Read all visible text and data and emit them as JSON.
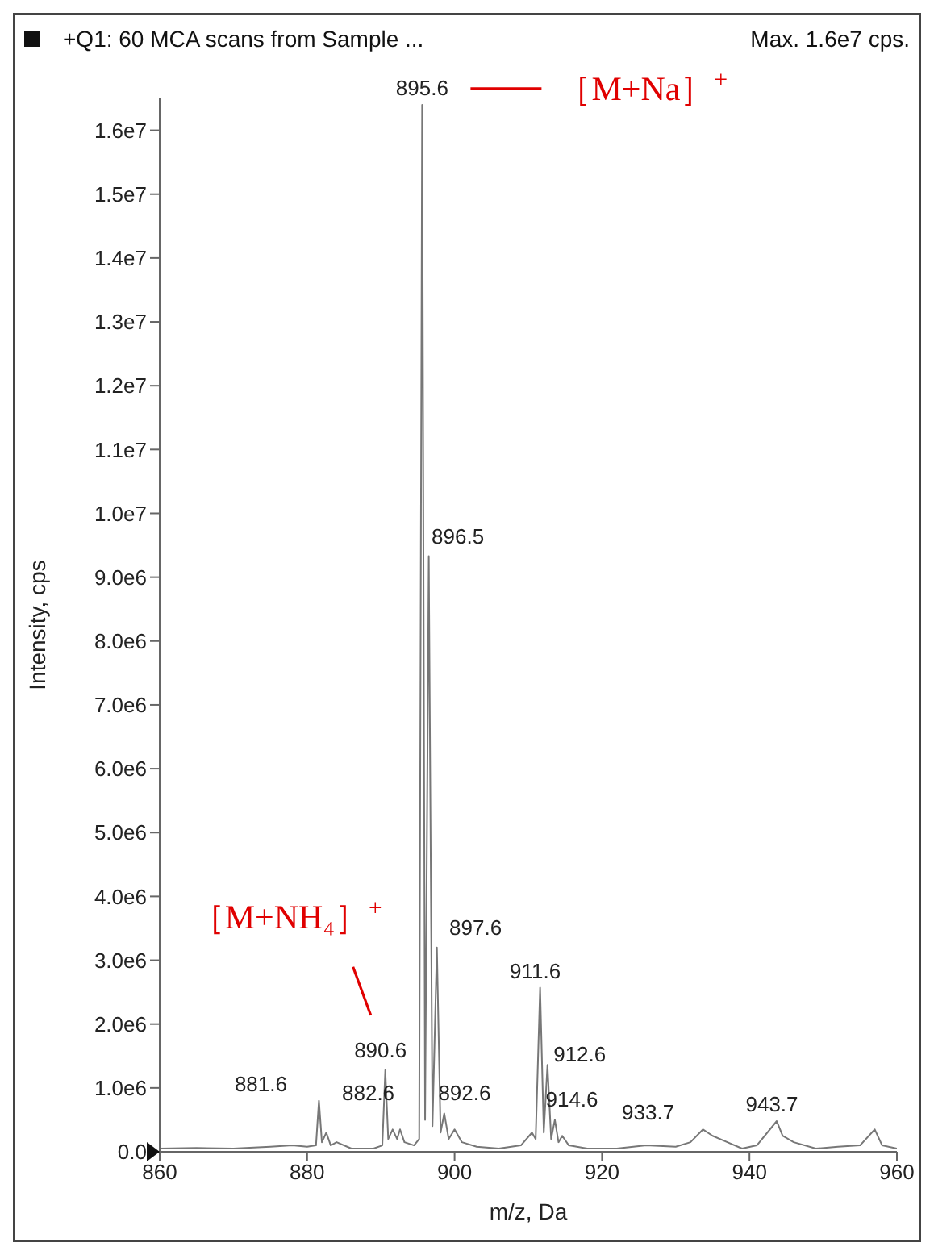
{
  "chart_data": {
    "type": "line",
    "title": "+Q1: 60 MCA scans from Sample ...",
    "subtitle": "Max. 1.6e7 cps.",
    "xlabel": "m/z, Da",
    "ylabel": "Intensity, cps",
    "x": [
      860,
      865,
      870,
      875,
      878,
      880,
      881.2,
      881.6,
      882.0,
      882.6,
      883.2,
      884,
      886,
      889,
      890.2,
      890.6,
      891.0,
      891.6,
      892.2,
      892.6,
      893.2,
      894.5,
      895.2,
      895.6,
      896.0,
      896.5,
      897.0,
      897.6,
      898.1,
      898.6,
      899.2,
      900,
      901,
      903,
      906,
      909,
      910.5,
      911.0,
      911.6,
      912.1,
      912.6,
      913.1,
      913.6,
      914.1,
      914.6,
      915.5,
      918,
      922,
      926,
      930,
      932,
      933.7,
      935,
      937,
      939,
      941,
      943.7,
      944.5,
      946,
      949,
      952,
      955,
      957,
      958,
      960
    ],
    "series": [
      {
        "color": "#777777",
        "values": [
          50000,
          60000,
          50000,
          80000,
          100000,
          80000,
          100000,
          800000,
          150000,
          300000,
          100000,
          150000,
          50000,
          50000,
          100000,
          1280000,
          200000,
          350000,
          200000,
          350000,
          150000,
          100000,
          200000,
          16400000,
          500000,
          9330000,
          400000,
          3200000,
          300000,
          600000,
          200000,
          350000,
          150000,
          80000,
          50000,
          100000,
          300000,
          200000,
          2570000,
          300000,
          1360000,
          200000,
          500000,
          150000,
          250000,
          100000,
          50000,
          50000,
          100000,
          80000,
          150000,
          350000,
          250000,
          150000,
          50000,
          100000,
          480000,
          250000,
          150000,
          50000,
          80000,
          100000,
          350000,
          100000,
          50000
        ]
      }
    ],
    "xlim": [
      860,
      960
    ],
    "xticks": [
      860,
      880,
      900,
      920,
      940,
      960
    ],
    "ylim": [
      0,
      16500000
    ],
    "yticks": [
      {
        "value": 0,
        "label": "0.0"
      },
      {
        "value": 1000000,
        "label": "1.0e6"
      },
      {
        "value": 2000000,
        "label": "2.0e6"
      },
      {
        "value": 3000000,
        "label": "3.0e6"
      },
      {
        "value": 4000000,
        "label": "4.0e6"
      },
      {
        "value": 5000000,
        "label": "5.0e6"
      },
      {
        "value": 6000000,
        "label": "6.0e6"
      },
      {
        "value": 7000000,
        "label": "7.0e6"
      },
      {
        "value": 8000000,
        "label": "8.0e6"
      },
      {
        "value": 9000000,
        "label": "9.0e6"
      },
      {
        "value": 10000000,
        "label": "1.0e7"
      },
      {
        "value": 11000000,
        "label": "1.1e7"
      },
      {
        "value": 12000000,
        "label": "1.2e7"
      },
      {
        "value": 13000000,
        "label": "1.3e7"
      },
      {
        "value": 14000000,
        "label": "1.4e7"
      },
      {
        "value": 15000000,
        "label": "1.5e7"
      },
      {
        "value": 16000000,
        "label": "1.6e7"
      }
    ],
    "grid": false,
    "marker": "none",
    "line_style": "solid",
    "annotations": [
      {
        "text": "895.6",
        "x": 895.6,
        "y": 16400000
      },
      {
        "text": "896.5",
        "x": 896.5,
        "y": 9330000
      },
      {
        "text": "897.6",
        "x": 897.6,
        "y": 3200000
      },
      {
        "text": "890.6",
        "x": 890.6,
        "y": 1280000
      },
      {
        "text": "881.6",
        "x": 881.6,
        "y": 800000
      },
      {
        "text": "882.6",
        "x": 882.6,
        "y": 300000
      },
      {
        "text": "892.6",
        "x": 892.6,
        "y": 350000
      },
      {
        "text": "911.6",
        "x": 911.6,
        "y": 2570000
      },
      {
        "text": "912.6",
        "x": 912.6,
        "y": 1360000
      },
      {
        "text": "914.6",
        "x": 914.6,
        "y": 250000
      },
      {
        "text": "933.7",
        "x": 933.7,
        "y": 350000
      },
      {
        "text": "943.7",
        "x": 943.7,
        "y": 480000
      },
      "［M+Na］$^{+}$",
      "［M+NH₄］$^{+}$"
    ]
  }
}
